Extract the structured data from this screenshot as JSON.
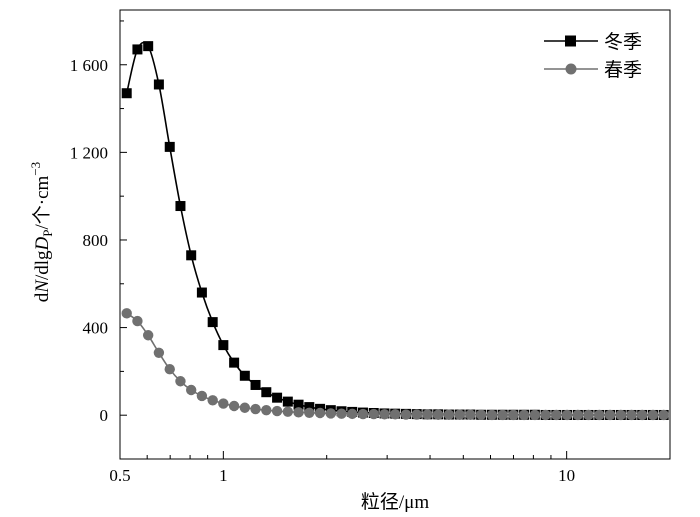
{
  "chart_data": {
    "type": "line",
    "xlabel": "粒径/μm",
    "ylabel": {
      "prefix": "d",
      "italic1": "N",
      "mid": "/dlg",
      "italic2": "D",
      "sub": "P",
      "unit": "/个·cm",
      "sup": "−3"
    },
    "xscale": "log",
    "xlim": [
      0.5,
      20
    ],
    "ylim": [
      -200,
      1850
    ],
    "xticks": [
      {
        "value": 0.5,
        "label": "0.5"
      },
      {
        "value": 1,
        "label": "1"
      },
      {
        "value": 10,
        "label": "10"
      }
    ],
    "yticks": [
      {
        "value": 0,
        "label": "0"
      },
      {
        "value": 400,
        "label": "400"
      },
      {
        "value": 800,
        "label": "800"
      },
      {
        "value": 1200,
        "label": "1 200"
      },
      {
        "value": 1600,
        "label": "1 600"
      }
    ],
    "legend_position": "top-right",
    "series": [
      {
        "name": "冬季",
        "color": "#000000",
        "marker": "square",
        "x": [
          0.523,
          0.562,
          0.604,
          0.649,
          0.698,
          0.75,
          0.806,
          0.866,
          0.931,
          1.0,
          1.075,
          1.155,
          1.241,
          1.334,
          1.434,
          1.541,
          1.656,
          1.78,
          1.913,
          2.056,
          2.209,
          2.374,
          2.551,
          2.742,
          2.947,
          3.167,
          3.404,
          3.658,
          3.931,
          4.225,
          4.54,
          4.879,
          5.244,
          5.636,
          6.057,
          6.509,
          6.995,
          7.518,
          8.079,
          8.683,
          9.331,
          10.03,
          10.78,
          11.58,
          12.45,
          13.38,
          14.38,
          15.45,
          16.6,
          17.84,
          19.17
        ],
        "values": [
          1470,
          1670,
          1685,
          1510,
          1225,
          955,
          730,
          560,
          425,
          320,
          240,
          180,
          138,
          105,
          80,
          62,
          48,
          37,
          29,
          23,
          18,
          15,
          12,
          10,
          8,
          7,
          6,
          5,
          4,
          4,
          3,
          3,
          3,
          2,
          2,
          2,
          2,
          2,
          2,
          1,
          1,
          1,
          1,
          1,
          1,
          1,
          1,
          1,
          1,
          1,
          1
        ]
      },
      {
        "name": "春季",
        "color": "#707070",
        "marker": "circle",
        "x": [
          0.523,
          0.562,
          0.604,
          0.649,
          0.698,
          0.75,
          0.806,
          0.866,
          0.931,
          1.0,
          1.075,
          1.155,
          1.241,
          1.334,
          1.434,
          1.541,
          1.656,
          1.78,
          1.913,
          2.056,
          2.209,
          2.374,
          2.551,
          2.742,
          2.947,
          3.167,
          3.404,
          3.658,
          3.931,
          4.225,
          4.54,
          4.879,
          5.244,
          5.636,
          6.057,
          6.509,
          6.995,
          7.518,
          8.079,
          8.683,
          9.331,
          10.03,
          10.78,
          11.58,
          12.45,
          13.38,
          14.38,
          15.45,
          16.6,
          17.84,
          19.17
        ],
        "values": [
          465,
          430,
          365,
          285,
          210,
          155,
          115,
          88,
          68,
          53,
          42,
          34,
          28,
          23,
          19,
          16,
          13,
          11,
          10,
          8,
          7,
          6,
          5,
          5,
          4,
          4,
          3,
          3,
          3,
          2,
          2,
          2,
          2,
          2,
          1,
          1,
          1,
          1,
          1,
          1,
          1,
          1,
          1,
          1,
          1,
          1,
          1,
          1,
          1,
          1,
          1
        ]
      }
    ]
  }
}
